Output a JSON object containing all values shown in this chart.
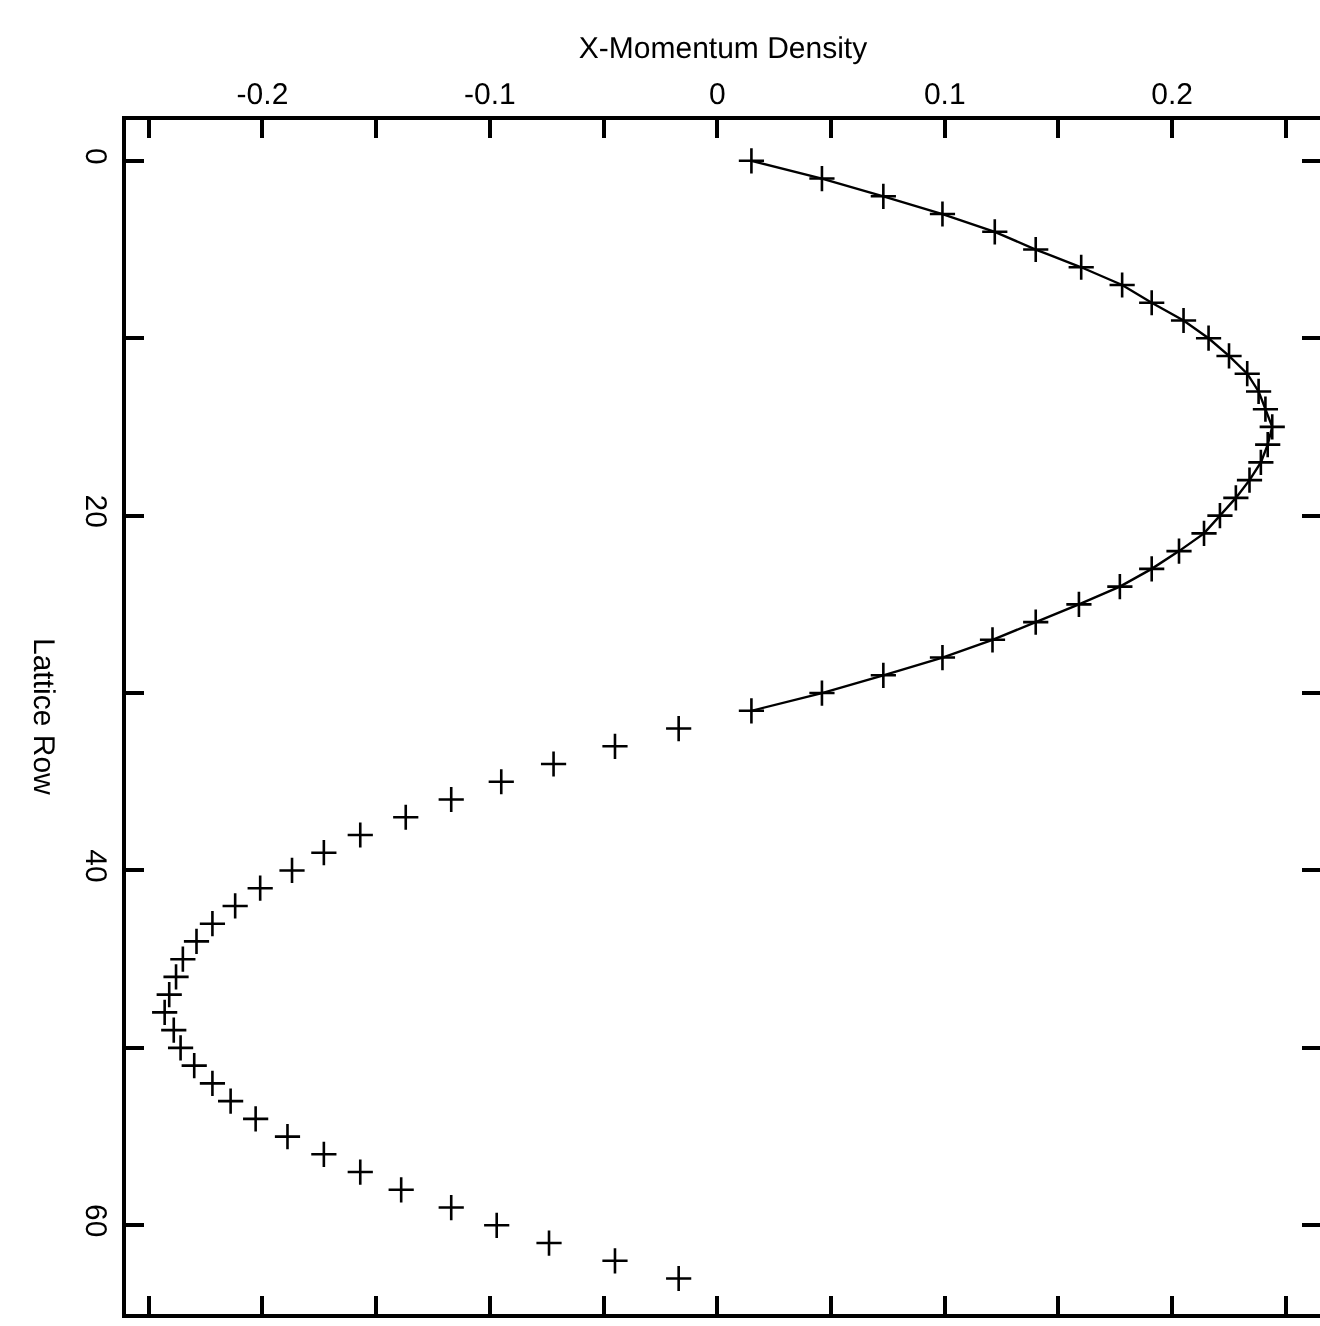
{
  "chart_data": {
    "type": "line",
    "xlabel": "X-Momentum Density",
    "ylabel": "Lattice Row",
    "xlim": [
      -0.26,
      0.265
    ],
    "ylim": [
      65,
      -2.3
    ],
    "xticks": [
      {
        "value": -0.25,
        "label": null
      },
      -0.2,
      {
        "value": -0.15,
        "label": null
      },
      -0.1,
      {
        "value": -0.05,
        "label": null
      },
      0,
      {
        "value": 0.05,
        "label": null
      },
      0.1,
      {
        "value": 0.15,
        "label": null
      },
      0.2,
      {
        "value": 0.25,
        "label": null
      }
    ],
    "yticks": [
      0,
      {
        "value": 10,
        "label": null
      },
      20,
      {
        "value": 30,
        "label": null
      },
      40,
      {
        "value": 50,
        "label": null
      },
      60
    ],
    "series": [
      {
        "type": "line",
        "marker": "cross",
        "line_style": "solid",
        "color": "#000000",
        "x": [
          0.015,
          0.046,
          0.073,
          0.099,
          0.122,
          0.14,
          0.16,
          0.178,
          0.191,
          0.205,
          0.216,
          0.225,
          0.233,
          0.238,
          0.241,
          0.244,
          0.242,
          0.239,
          0.234,
          0.228,
          0.221,
          0.214,
          0.203,
          0.191,
          0.177,
          0.159,
          0.14,
          0.121,
          0.099,
          0.073,
          0.046,
          0.015
        ],
        "values": [
          0,
          1,
          2,
          3,
          4,
          5,
          6,
          7,
          8,
          9,
          10,
          11,
          12,
          13,
          14,
          15,
          16,
          17,
          18,
          19,
          20,
          21,
          22,
          23,
          24,
          25,
          26,
          27,
          28,
          29,
          30,
          31
        ]
      },
      {
        "type": "scatter",
        "marker": "cross",
        "color": "#000000",
        "x": [
          -0.017,
          -0.045,
          -0.072,
          -0.095,
          -0.117,
          -0.137,
          -0.157,
          -0.173,
          -0.187,
          -0.201,
          -0.212,
          -0.222,
          -0.229,
          -0.235,
          -0.238,
          -0.241,
          -0.243,
          -0.239,
          -0.236,
          -0.23,
          -0.222,
          -0.214,
          -0.203,
          -0.189,
          -0.173,
          -0.157,
          -0.139,
          -0.117,
          -0.097,
          -0.074,
          -0.045,
          -0.017
        ],
        "values": [
          32,
          33,
          34,
          35,
          36,
          37,
          38,
          39,
          40,
          41,
          42,
          43,
          44,
          45,
          46,
          47,
          48,
          49,
          50,
          51,
          52,
          53,
          54,
          55,
          56,
          57,
          58,
          59,
          60,
          61,
          62,
          63
        ]
      }
    ]
  }
}
